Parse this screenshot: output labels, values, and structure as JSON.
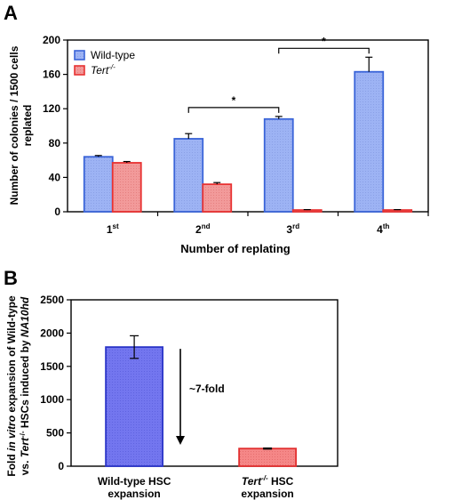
{
  "panel_labels": [
    "A",
    "B"
  ],
  "chart_data": [
    {
      "type": "bar",
      "panel": "A",
      "xlabel": "Number of replating",
      "ylabel_line1": "Number of colonies / 1500 cells",
      "ylabel_line2": "replated",
      "ylim": [
        0,
        200
      ],
      "yticks": [
        "0",
        "40",
        "80",
        "120",
        "160",
        "200"
      ],
      "categories": [
        {
          "base": "1",
          "sup": "st"
        },
        {
          "base": "2",
          "sup": "nd"
        },
        {
          "base": "3",
          "sup": "rd"
        },
        {
          "base": "4",
          "sup": "th"
        }
      ],
      "series": [
        {
          "name": "Wild-type",
          "values": [
            64,
            85,
            108,
            163
          ],
          "errors": [
            1.5,
            6,
            3,
            17
          ],
          "fill": "#99aef2",
          "stroke": "#3a64d8"
        },
        {
          "name": "Tert",
          "name_sup": "-/-",
          "values": [
            57,
            32,
            2,
            2
          ],
          "errors": [
            1.5,
            2,
            0.5,
            0.5
          ],
          "fill": "#f29191",
          "stroke": "#e83232"
        }
      ],
      "significance": [
        {
          "from": 1,
          "to": 2,
          "label": "*"
        },
        {
          "from": 2,
          "to": 3,
          "label": "*"
        }
      ],
      "legend_position": "top-left",
      "grid": false
    },
    {
      "type": "bar",
      "panel": "B",
      "ylabel_line1": {
        "a": "Fold ",
        "b": "in vitro",
        "c": " expansion of Wild-type"
      },
      "ylabel_line2": {
        "a": "vs. ",
        "b": "Tert",
        "sup": "-/-",
        "c": " HSCs induced by ",
        "d": "NA10hd"
      },
      "ylim": [
        0,
        2500
      ],
      "yticks": [
        "0",
        "500",
        "1000",
        "1500",
        "2000",
        "2500"
      ],
      "categories": [
        {
          "line1": "Wild-type HSC",
          "line2": "expansion"
        },
        {
          "line1_italic": "Tert",
          "line1_sup": "-/-",
          "line1_rest": " HSC",
          "line2": "expansion"
        }
      ],
      "values": [
        1790,
        265
      ],
      "errors": [
        170,
        8
      ],
      "colors": [
        {
          "fill": "#6f72ee",
          "stroke": "#2b35c8"
        },
        {
          "fill": "#f48080",
          "stroke": "#e23030"
        }
      ],
      "annotation": "~7-fold",
      "grid": false
    }
  ]
}
